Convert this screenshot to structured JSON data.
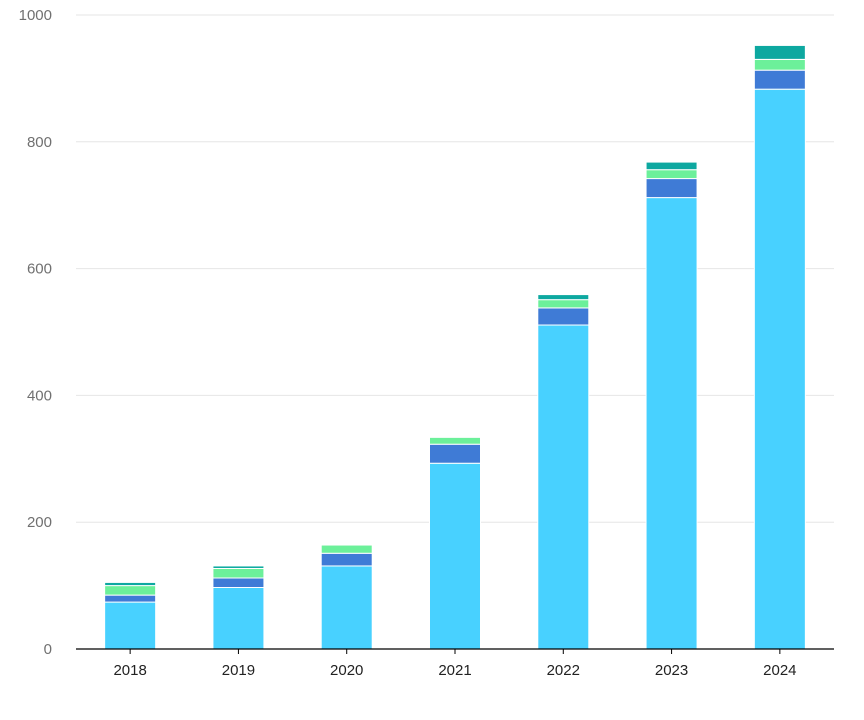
{
  "chart_data": {
    "type": "bar",
    "stacked": true,
    "categories": [
      "2018",
      "2019",
      "2020",
      "2021",
      "2022",
      "2023",
      "2024"
    ],
    "series": [
      {
        "color": "#48D1FF",
        "values": [
          74,
          97,
          131,
          293,
          511,
          712,
          883
        ]
      },
      {
        "color": "#3F7BD6",
        "values": [
          11,
          15,
          20,
          30,
          27,
          30,
          30
        ]
      },
      {
        "color": "#6CF09A",
        "values": [
          15,
          15,
          13,
          11,
          13,
          14,
          17
        ]
      },
      {
        "color": "#0DA8A0",
        "values": [
          5,
          4,
          1,
          1,
          8,
          12,
          22
        ]
      }
    ],
    "ylim": [
      0,
      1000
    ],
    "yticks": [
      0,
      200,
      400,
      600,
      800,
      1000
    ],
    "grid": true,
    "legend": "none"
  },
  "colors": {
    "grid": "#E6E6E6",
    "axis": "#000000",
    "segment_separator": "#ffffff"
  }
}
